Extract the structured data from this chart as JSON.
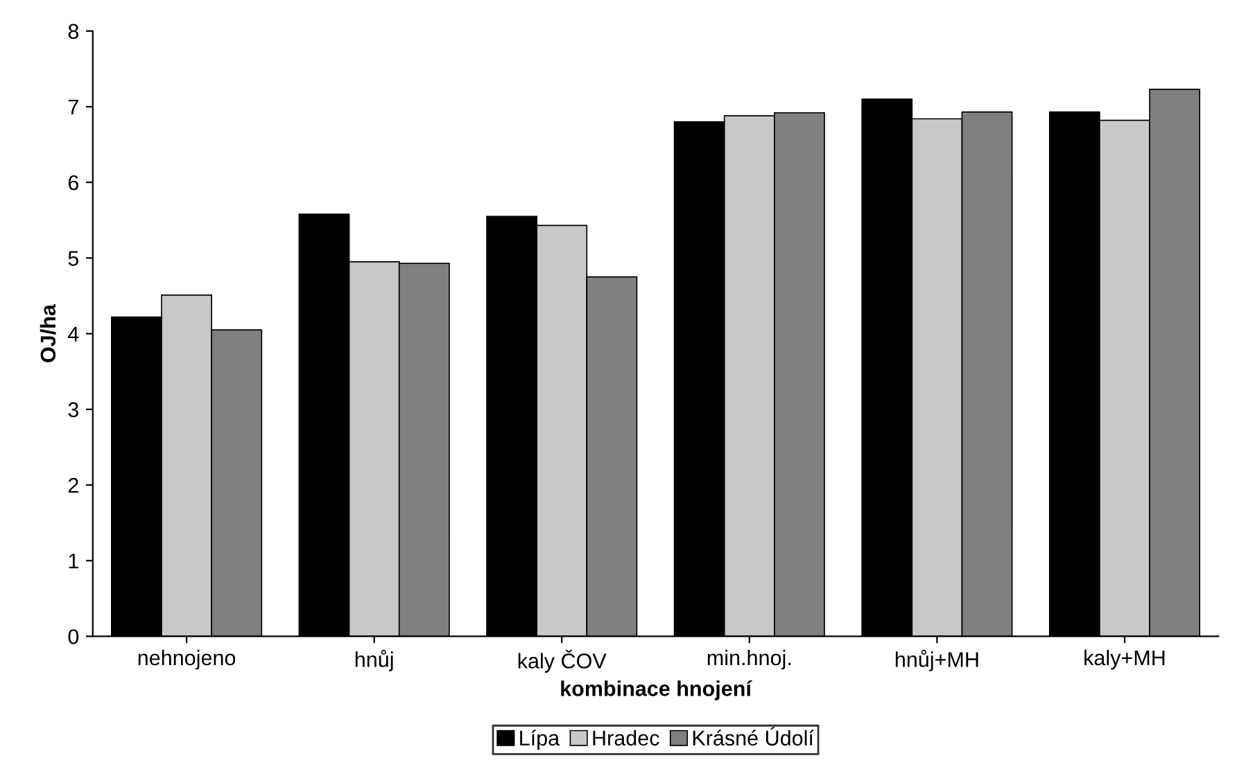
{
  "chart_data": {
    "type": "bar",
    "xlabel": "kombinace hnojení",
    "ylabel": "OJ/ha",
    "categories": [
      "nehnojeno",
      "hnůj",
      "kaly ČOV",
      "min.hnoj.",
      "hnůj+MH",
      "kaly+MH"
    ],
    "series": [
      {
        "name": "Lípa",
        "color": "#000000",
        "values": [
          4.22,
          5.58,
          5.55,
          6.8,
          7.1,
          6.93
        ]
      },
      {
        "name": "Hradec",
        "color": "#c8c8c8",
        "values": [
          4.51,
          4.95,
          5.43,
          6.88,
          6.84,
          6.82
        ]
      },
      {
        "name": "Krásné Údolí",
        "color": "#808080",
        "values": [
          4.05,
          4.93,
          4.75,
          6.92,
          6.93,
          7.23
        ]
      }
    ],
    "ylim": [
      0,
      8
    ],
    "yticks": [
      0,
      1,
      2,
      3,
      4,
      5,
      6,
      7,
      8
    ],
    "grid": false,
    "legend": "bottom"
  }
}
